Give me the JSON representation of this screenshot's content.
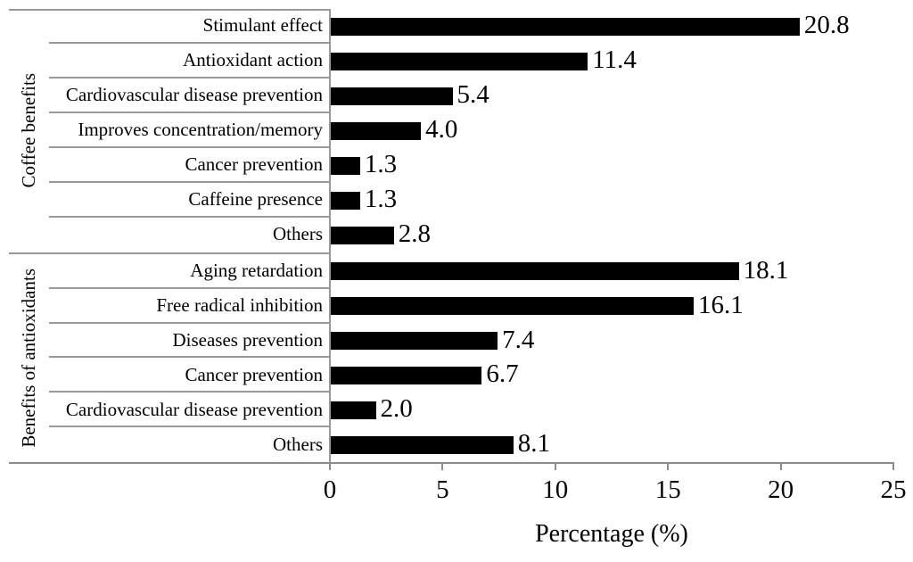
{
  "chart_data": {
    "type": "bar",
    "orientation": "horizontal",
    "title": "",
    "xlabel": "Percentage (%)",
    "ylabel_groups": [
      "Coffee benefits",
      "Benefits of antioxidants"
    ],
    "xlim": [
      0,
      25
    ],
    "xticks": [
      "0",
      "5",
      "10",
      "15",
      "20",
      "25"
    ],
    "grid": "row-dividers-only",
    "bar_color": "#000000",
    "line_color": "#999999",
    "groups": [
      {
        "label": "Coffee benefits",
        "items": [
          {
            "label": "Stimulant effect",
            "value": 20.8,
            "value_label": "20.8"
          },
          {
            "label": "Antioxidant action",
            "value": 11.4,
            "value_label": "11.4"
          },
          {
            "label": "Cardiovascular disease prevention",
            "value": 5.4,
            "value_label": "5.4"
          },
          {
            "label": "Improves concentration/memory",
            "value": 4.0,
            "value_label": "4.0"
          },
          {
            "label": "Cancer prevention",
            "value": 1.3,
            "value_label": "1.3"
          },
          {
            "label": "Caffeine presence",
            "value": 1.3,
            "value_label": "1.3"
          },
          {
            "label": "Others",
            "value": 2.8,
            "value_label": "2.8"
          }
        ]
      },
      {
        "label": "Benefits of antioxidants",
        "items": [
          {
            "label": "Aging retardation",
            "value": 18.1,
            "value_label": "18.1"
          },
          {
            "label": "Free radical inhibition",
            "value": 16.1,
            "value_label": "16.1"
          },
          {
            "label": "Diseases prevention",
            "value": 7.4,
            "value_label": "7.4"
          },
          {
            "label": "Cancer prevention",
            "value": 6.7,
            "value_label": "6.7"
          },
          {
            "label": "Cardiovascular disease prevention",
            "value": 2.0,
            "value_label": "2.0"
          },
          {
            "label": "Others",
            "value": 8.1,
            "value_label": "8.1"
          }
        ]
      }
    ]
  }
}
